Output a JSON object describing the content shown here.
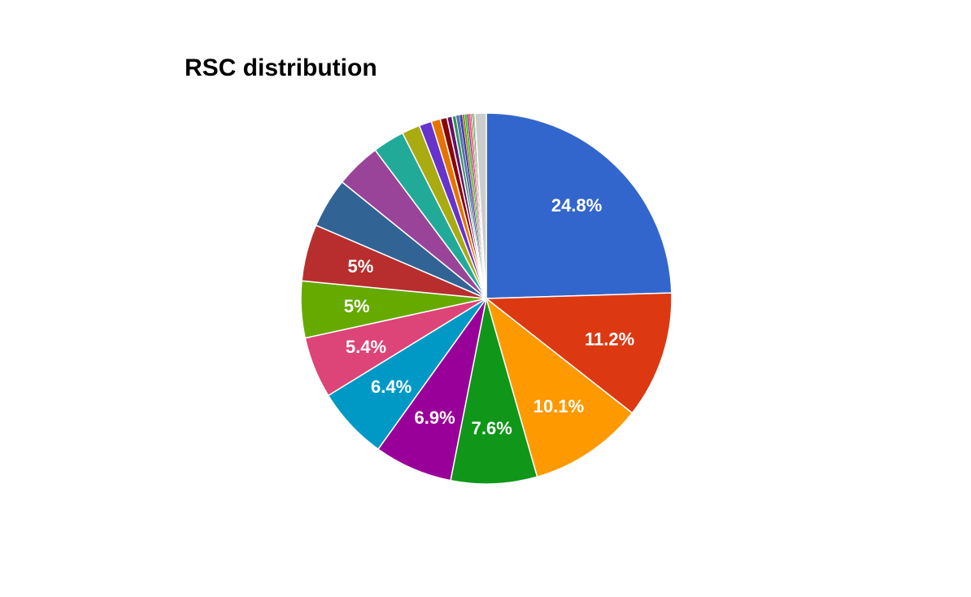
{
  "chart_data": {
    "type": "pie",
    "title": "RSC distribution",
    "slices": [
      {
        "value": 24.8,
        "label": "24.8%",
        "color": "#3366cc"
      },
      {
        "value": 11.2,
        "label": "11.2%",
        "color": "#dc3912"
      },
      {
        "value": 10.1,
        "label": "10.1%",
        "color": "#ff9900"
      },
      {
        "value": 7.6,
        "label": "7.6%",
        "color": "#109618"
      },
      {
        "value": 6.9,
        "label": "6.9%",
        "color": "#990099"
      },
      {
        "value": 6.4,
        "label": "6.4%",
        "color": "#0099c6"
      },
      {
        "value": 5.4,
        "label": "5.4%",
        "color": "#dd4477"
      },
      {
        "value": 5.0,
        "label": "5%",
        "color": "#66aa00"
      },
      {
        "value": 5.0,
        "label": "5%",
        "color": "#b82e2e"
      },
      {
        "value": 4.4,
        "label": "",
        "color": "#316395"
      },
      {
        "value": 4.0,
        "label": "",
        "color": "#994499"
      },
      {
        "value": 2.8,
        "label": "",
        "color": "#22aa99"
      },
      {
        "value": 1.6,
        "label": "",
        "color": "#aaaa11"
      },
      {
        "value": 1.1,
        "label": "",
        "color": "#6633cc"
      },
      {
        "value": 0.8,
        "label": "",
        "color": "#e67300"
      },
      {
        "value": 0.6,
        "label": "",
        "color": "#8b0707"
      },
      {
        "value": 0.45,
        "label": "",
        "color": "#651067"
      },
      {
        "value": 0.35,
        "label": "",
        "color": "#329262"
      },
      {
        "value": 0.3,
        "label": "",
        "color": "#5574a6"
      },
      {
        "value": 0.25,
        "label": "",
        "color": "#3b3eac"
      },
      {
        "value": 0.2,
        "label": "",
        "color": "#b77322"
      },
      {
        "value": 0.2,
        "label": "",
        "color": "#16d620"
      },
      {
        "value": 0.15,
        "label": "",
        "color": "#b91383"
      },
      {
        "value": 0.15,
        "label": "",
        "color": "#f4359e"
      },
      {
        "value": 0.1,
        "label": "",
        "color": "#9c5935"
      },
      {
        "value": 0.1,
        "label": "",
        "color": "#a9c413"
      },
      {
        "value": 0.1,
        "label": "",
        "color": "#2a778d"
      },
      {
        "value": 0.1,
        "label": "",
        "color": "#668d1c"
      },
      {
        "value": 1.0,
        "label": "",
        "color": "#cccccc"
      }
    ]
  }
}
